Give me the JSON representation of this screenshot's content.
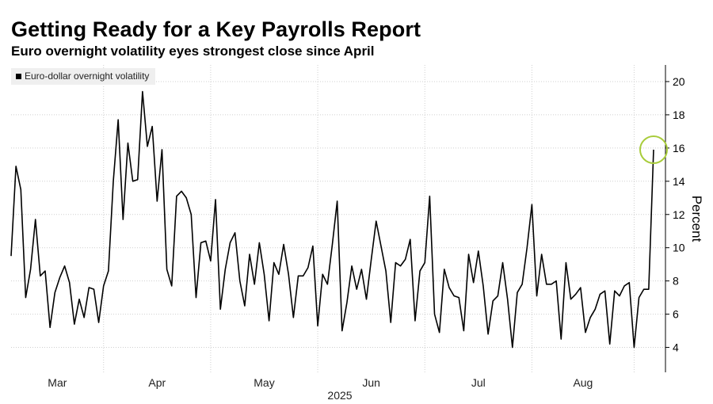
{
  "header": {
    "title": "Getting Ready for a Key Payrolls Report",
    "subtitle": "Euro overnight volatility eyes strongest close since April"
  },
  "chart_data": {
    "type": "line",
    "ylabel": "Percent",
    "xlabel": "2025",
    "ylim": [
      2.5,
      21
    ],
    "yticks": [
      4,
      6,
      8,
      10,
      12,
      14,
      16,
      18,
      20
    ],
    "x_tick_labels": [
      "Mar",
      "Apr",
      "May",
      "Jun",
      "Jul",
      "Aug"
    ],
    "grid": true,
    "legend_position": "top-left",
    "series": [
      {
        "name": "Euro-dollar overnight volatility",
        "color": "#000000",
        "values": [
          9.5,
          14.9,
          13.5,
          7.0,
          8.7,
          11.7,
          8.3,
          8.6,
          5.2,
          7.3,
          8.2,
          8.9,
          7.9,
          5.4,
          6.9,
          5.8,
          7.6,
          7.5,
          5.5,
          7.7,
          8.6,
          14.0,
          17.7,
          11.7,
          16.3,
          14.0,
          14.1,
          19.4,
          16.1,
          17.3,
          12.8,
          15.9,
          8.7,
          7.7,
          13.1,
          13.4,
          13.0,
          12.0,
          7.0,
          10.3,
          10.4,
          9.2,
          12.9,
          6.3,
          8.7,
          10.3,
          10.9,
          8.0,
          6.5,
          9.6,
          7.8,
          10.3,
          8.4,
          5.6,
          9.1,
          8.4,
          10.2,
          8.4,
          5.8,
          8.3,
          8.3,
          8.8,
          10.1,
          5.3,
          8.4,
          7.8,
          10.2,
          12.8,
          5.0,
          6.7,
          8.9,
          7.5,
          8.7,
          6.9,
          9.3,
          11.6,
          10.1,
          8.6,
          5.5,
          9.1,
          8.9,
          9.3,
          10.5,
          5.6,
          8.6,
          9.1,
          13.1,
          6.0,
          4.9,
          8.7,
          7.6,
          7.1,
          7.0,
          5.0,
          9.6,
          7.9,
          9.8,
          7.7,
          4.8,
          6.8,
          7.1,
          9.1,
          6.9,
          4.0,
          7.3,
          7.8,
          10.0,
          12.6,
          7.1,
          9.6,
          7.8,
          7.8,
          8.0,
          4.5,
          9.1,
          6.9,
          7.2,
          7.6,
          4.9,
          5.8,
          6.3,
          7.2,
          7.4,
          4.2,
          7.4,
          7.1,
          7.7,
          7.9,
          4.0,
          7.0,
          7.5,
          7.5,
          15.9
        ]
      }
    ],
    "highlight": {
      "index": 132,
      "color": "#a8cc3a"
    }
  }
}
